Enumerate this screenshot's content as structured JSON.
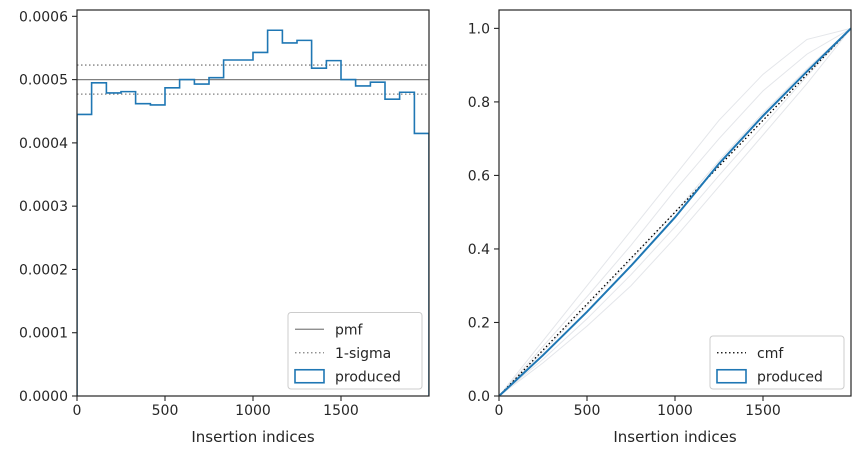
{
  "chart_data": [
    {
      "type": "step",
      "xlabel": "Insertion indices",
      "ylabel": "",
      "xlim": [
        0,
        2000
      ],
      "ylim": [
        0,
        0.00061
      ],
      "x_ticks": [
        {
          "value": 0,
          "label": "0"
        },
        {
          "value": 500,
          "label": "500"
        },
        {
          "value": 1000,
          "label": "1000"
        },
        {
          "value": 1500,
          "label": "1500"
        }
      ],
      "y_ticks": [
        {
          "value": 0,
          "label": "0.0000"
        },
        {
          "value": 0.0001,
          "label": "0.0001"
        },
        {
          "value": 0.0002,
          "label": "0.0002"
        },
        {
          "value": 0.0003,
          "label": "0.0003"
        },
        {
          "value": 0.0004,
          "label": "0.0004"
        },
        {
          "value": 0.0005,
          "label": "0.0005"
        },
        {
          "value": 0.0006,
          "label": "0.0006"
        }
      ],
      "reference_lines": [
        {
          "name": "pmf",
          "value": 0.0005,
          "style": "solid",
          "color": "#808080"
        },
        {
          "name": "1-sigma",
          "value": 0.000523,
          "style": "dotted",
          "color": "#808080"
        },
        {
          "name": "1-sigma",
          "value": 0.000477,
          "style": "dotted",
          "color": "#808080"
        }
      ],
      "series": [
        {
          "name": "produced",
          "color": "#1f77b4",
          "bin_edges": [
            0,
            83,
            167,
            250,
            333,
            417,
            500,
            583,
            667,
            750,
            833,
            917,
            1000,
            1083,
            1167,
            1250,
            1333,
            1417,
            1500,
            1583,
            1667,
            1750,
            1833,
            1917,
            2000
          ],
          "values": [
            0.000445,
            0.000495,
            0.000479,
            0.000481,
            0.000462,
            0.00046,
            0.000487,
            0.0005,
            0.000493,
            0.000503,
            0.000531,
            0.000531,
            0.000543,
            0.000578,
            0.000558,
            0.000562,
            0.000518,
            0.00053,
            0.0005,
            0.00049,
            0.000496,
            0.000469,
            0.00048,
            0.000415
          ]
        }
      ],
      "legend": {
        "placement": "lower-right",
        "entries": [
          {
            "label": "pmf",
            "style": "solid",
            "color": "#808080"
          },
          {
            "label": "1-sigma",
            "style": "dotted",
            "color": "#808080"
          },
          {
            "label": "produced",
            "style": "patch",
            "color": "#1f77b4"
          }
        ]
      }
    },
    {
      "type": "line",
      "xlabel": "Insertion indices",
      "ylabel": "",
      "xlim": [
        0,
        2000
      ],
      "ylim": [
        0,
        1.05
      ],
      "x_ticks": [
        {
          "value": 0,
          "label": "0"
        },
        {
          "value": 500,
          "label": "500"
        },
        {
          "value": 1000,
          "label": "1000"
        },
        {
          "value": 1500,
          "label": "1500"
        }
      ],
      "y_ticks": [
        {
          "value": 0,
          "label": "0.0"
        },
        {
          "value": 0.2,
          "label": "0.2"
        },
        {
          "value": 0.4,
          "label": "0.4"
        },
        {
          "value": 0.6,
          "label": "0.6"
        },
        {
          "value": 0.8,
          "label": "0.8"
        },
        {
          "value": 1.0,
          "label": "1.0"
        }
      ],
      "series": [
        {
          "name": "cmf",
          "style": "dotted",
          "color": "#000000",
          "x": [
            0,
            2000
          ],
          "y": [
            0,
            1
          ]
        },
        {
          "name": "produced",
          "style": "solid",
          "color": "#1f77b4",
          "x": [
            0,
            250,
            500,
            750,
            1000,
            1250,
            1500,
            1750,
            2000
          ],
          "y": [
            0,
            0.111,
            0.229,
            0.354,
            0.486,
            0.632,
            0.762,
            0.883,
            1.0
          ]
        },
        {
          "style": "solid",
          "color": "#e4e6ea",
          "x": [
            0,
            250,
            500,
            750,
            1000,
            1250,
            1500,
            1750,
            2000
          ],
          "y": [
            0,
            0.15,
            0.3,
            0.45,
            0.6,
            0.75,
            0.875,
            0.97,
            1.0
          ]
        },
        {
          "style": "solid",
          "color": "#e4e6ea",
          "x": [
            0,
            250,
            500,
            750,
            1000,
            1250,
            1500,
            1750,
            2000
          ],
          "y": [
            0,
            0.135,
            0.27,
            0.41,
            0.56,
            0.7,
            0.83,
            0.93,
            1.0
          ]
        },
        {
          "style": "solid",
          "color": "#e4e6ea",
          "x": [
            0,
            250,
            500,
            750,
            1000,
            1250,
            1500,
            1750,
            2000
          ],
          "y": [
            0,
            0.1,
            0.21,
            0.33,
            0.46,
            0.6,
            0.735,
            0.87,
            1.0
          ]
        },
        {
          "style": "solid",
          "color": "#e4e6ea",
          "x": [
            0,
            250,
            500,
            750,
            1000,
            1250,
            1500,
            1750,
            2000
          ],
          "y": [
            0,
            0.09,
            0.19,
            0.3,
            0.43,
            0.57,
            0.71,
            0.85,
            1.0
          ]
        },
        {
          "style": "solid",
          "color": "#e4e6ea",
          "x": [
            0,
            250,
            500,
            750,
            1000,
            1250,
            1500,
            1750,
            2000
          ],
          "y": [
            0,
            0.12,
            0.245,
            0.37,
            0.5,
            0.64,
            0.77,
            0.89,
            1.0
          ]
        }
      ],
      "legend": {
        "placement": "lower-right",
        "entries": [
          {
            "label": "cmf",
            "style": "dotted",
            "color": "#000000"
          },
          {
            "label": "produced",
            "style": "patch",
            "color": "#1f77b4"
          }
        ]
      }
    }
  ]
}
